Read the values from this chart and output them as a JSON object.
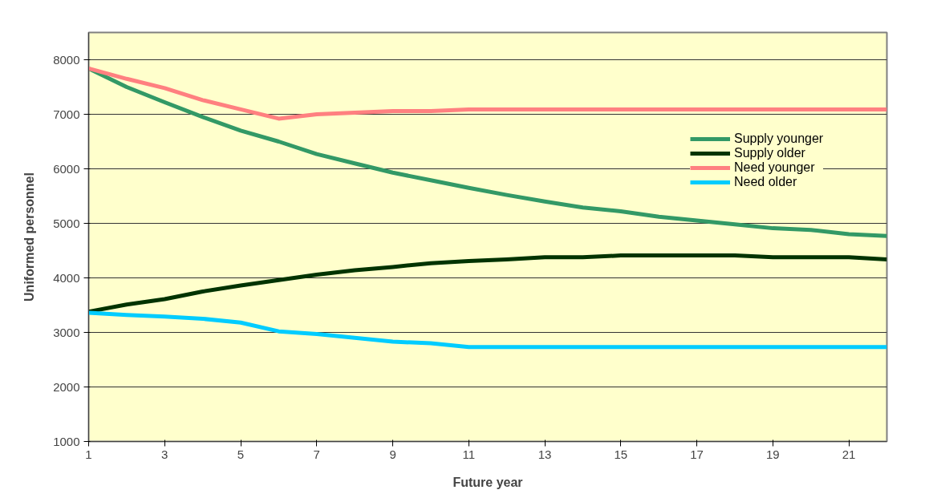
{
  "chart_data": {
    "type": "line",
    "xlabel": "Future year",
    "ylabel": "Uniformed personnel",
    "x": [
      1,
      2,
      3,
      4,
      5,
      6,
      7,
      8,
      9,
      10,
      11,
      12,
      13,
      14,
      15,
      16,
      17,
      18,
      19,
      20,
      21,
      22
    ],
    "xlim": [
      1,
      22
    ],
    "xticks": [
      1,
      3,
      5,
      7,
      9,
      11,
      13,
      15,
      17,
      19,
      21
    ],
    "ylim": [
      1000,
      8500
    ],
    "yticks": [
      1000,
      2000,
      3000,
      4000,
      5000,
      6000,
      7000,
      8000
    ],
    "grid": "y",
    "legend": "right",
    "marker": "none",
    "line_style": "solid",
    "series": [
      {
        "name": "Supply younger",
        "color": "#339966",
        "values": [
          7840,
          7500,
          7220,
          6950,
          6700,
          6500,
          6270,
          6100,
          5930,
          5790,
          5650,
          5520,
          5400,
          5290,
          5220,
          5120,
          5050,
          4980,
          4910,
          4880,
          4800,
          4770
        ]
      },
      {
        "name": "Supply older",
        "color": "#003300",
        "values": [
          3380,
          3510,
          3610,
          3750,
          3860,
          3960,
          4060,
          4140,
          4200,
          4270,
          4310,
          4340,
          4380,
          4380,
          4410,
          4410,
          4410,
          4410,
          4380,
          4380,
          4380,
          4340
        ]
      },
      {
        "name": "Need younger",
        "color": "#ff8080",
        "values": [
          7840,
          7650,
          7480,
          7260,
          7090,
          6920,
          7000,
          7030,
          7060,
          7060,
          7090,
          7090,
          7090,
          7090,
          7090,
          7090,
          7090,
          7090,
          7090,
          7090,
          7090,
          7090
        ]
      },
      {
        "name": "Need older",
        "color": "#00ccff",
        "values": [
          3360,
          3320,
          3290,
          3250,
          3180,
          3020,
          2970,
          2900,
          2830,
          2800,
          2730,
          2730,
          2730,
          2730,
          2730,
          2730,
          2730,
          2730,
          2730,
          2730,
          2730,
          2730
        ]
      }
    ]
  }
}
